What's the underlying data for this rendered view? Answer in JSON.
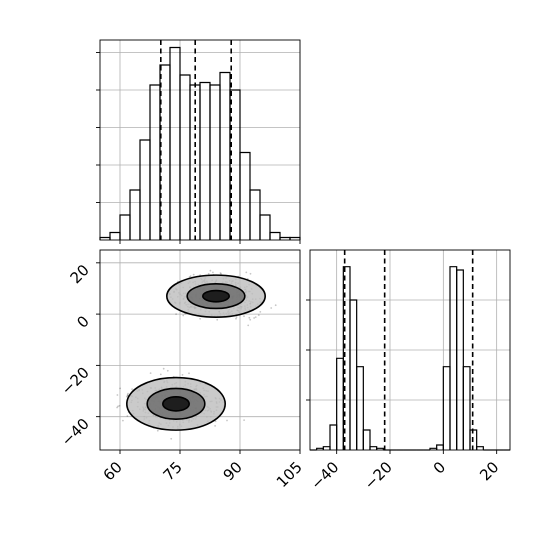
{
  "chart_data": [
    {
      "type": "histogram",
      "panel": "marginal-x",
      "bin_edges": [
        55,
        57.5,
        60,
        62.5,
        65,
        67.5,
        70,
        72.5,
        75,
        77.5,
        80,
        82.5,
        85,
        87.5,
        90,
        92.5,
        95,
        97.5,
        100,
        102.5,
        105
      ],
      "counts": [
        0.01,
        0.03,
        0.1,
        0.2,
        0.4,
        0.62,
        0.7,
        0.77,
        0.66,
        0.62,
        0.63,
        0.62,
        0.67,
        0.6,
        0.35,
        0.2,
        0.1,
        0.03,
        0.01,
        0.01
      ],
      "quantiles": [
        70.2,
        78.8,
        87.8
      ],
      "xlim": [
        55,
        105
      ],
      "xticks": [
        60,
        75,
        90,
        105
      ],
      "grid": true
    },
    {
      "type": "scatter",
      "panel": "joint",
      "clusters": [
        {
          "center": [
            84,
            7
          ],
          "spread": [
            6,
            4
          ]
        },
        {
          "center": [
            74,
            -35
          ],
          "spread": [
            6,
            5
          ]
        }
      ],
      "contour_levels": [
        0.39,
        0.86,
        0.99
      ],
      "xlim": [
        55,
        105
      ],
      "ylim": [
        -53,
        25
      ],
      "xticks": [
        "60",
        "75",
        "90",
        "105"
      ],
      "yticks": [
        "20",
        "0",
        "−20",
        "−40"
      ],
      "grid": true
    },
    {
      "type": "histogram",
      "panel": "marginal-y",
      "bin_edges": [
        -50,
        -47.5,
        -45,
        -42.5,
        -40,
        -37.5,
        -35,
        -32.5,
        -30,
        -27.5,
        -25,
        -22.5,
        -20,
        -17.5,
        -15,
        -12.5,
        -10,
        -7.5,
        -5,
        -2.5,
        0,
        2.5,
        5,
        7.5,
        10,
        12.5,
        15,
        17.5,
        20,
        22.5,
        25
      ],
      "counts": [
        0,
        0.01,
        0.02,
        0.15,
        0.55,
        1.1,
        0.9,
        0.5,
        0.12,
        0.02,
        0.01,
        0,
        0,
        0,
        0,
        0,
        0,
        0,
        0.01,
        0.03,
        0.5,
        1.1,
        1.08,
        0.5,
        0.12,
        0.02,
        0,
        0,
        0,
        0
      ],
      "quantiles": [
        -37,
        -22,
        11
      ],
      "xlim": [
        -50,
        25
      ],
      "xticks": [
        "−40",
        "−20",
        "0",
        "20"
      ],
      "grid": true
    }
  ]
}
